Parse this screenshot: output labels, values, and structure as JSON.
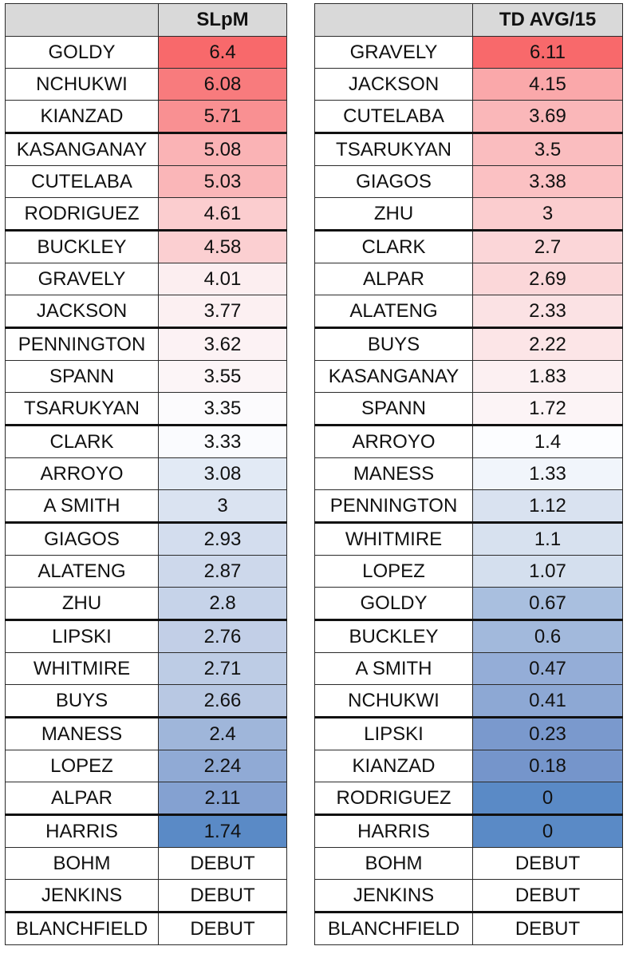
{
  "tables": [
    {
      "header_name": "",
      "header_stat": "SLpM",
      "rows": [
        {
          "name": "GOLDY",
          "value": "6.4",
          "color": "#f8696b"
        },
        {
          "name": "NCHUKWI",
          "value": "6.08",
          "color": "#f87b7d"
        },
        {
          "name": "KIANZAD",
          "value": "5.71",
          "color": "#f99092"
        },
        {
          "name": "KASANGANAY",
          "value": "5.08",
          "color": "#fab3b5"
        },
        {
          "name": "CUTELABA",
          "value": "5.03",
          "color": "#fab6b8"
        },
        {
          "name": "RODRIGUEZ",
          "value": "4.61",
          "color": "#fbcdcf"
        },
        {
          "name": "BUCKLEY",
          "value": "4.58",
          "color": "#fbcfd1"
        },
        {
          "name": "GRAVELY",
          "value": "4.01",
          "color": "#fceef0"
        },
        {
          "name": "JACKSON",
          "value": "3.77",
          "color": "#fcf0f2"
        },
        {
          "name": "PENNINGTON",
          "value": "3.62",
          "color": "#fcf2f4"
        },
        {
          "name": "SPANN",
          "value": "3.55",
          "color": "#fcf5f7"
        },
        {
          "name": "TSARUKYAN",
          "value": "3.35",
          "color": "#fcfbfd"
        },
        {
          "name": "CLARK",
          "value": "3.33",
          "color": "#fafbfe"
        },
        {
          "name": "ARROYO",
          "value": "3.08",
          "color": "#e2eaf5"
        },
        {
          "name": "A SMITH",
          "value": "3",
          "color": "#dae3f1"
        },
        {
          "name": "GIAGOS",
          "value": "2.93",
          "color": "#d3ddee"
        },
        {
          "name": "ALATENG",
          "value": "2.87",
          "color": "#cdd8eb"
        },
        {
          "name": "ZHU",
          "value": "2.8",
          "color": "#c6d3e9"
        },
        {
          "name": "LIPSKI",
          "value": "2.76",
          "color": "#c2cfe7"
        },
        {
          "name": "WHITMIRE",
          "value": "2.71",
          "color": "#bdcce5"
        },
        {
          "name": "BUYS",
          "value": "2.66",
          "color": "#b8c8e3"
        },
        {
          "name": "MANESS",
          "value": "2.4",
          "color": "#9fb6da"
        },
        {
          "name": "LOPEZ",
          "value": "2.24",
          "color": "#90aad5"
        },
        {
          "name": "ALPAR",
          "value": "2.11",
          "color": "#84a1d1"
        },
        {
          "name": "HARRIS",
          "value": "1.74",
          "color": "#5a8ac6"
        },
        {
          "name": "BOHM",
          "value": "DEBUT",
          "color": "#ffffff"
        },
        {
          "name": "JENKINS",
          "value": "DEBUT",
          "color": "#ffffff"
        },
        {
          "name": "BLANCHFIELD",
          "value": "DEBUT",
          "color": "#ffffff"
        }
      ]
    },
    {
      "header_name": "",
      "header_stat": "TD AVG/15",
      "rows": [
        {
          "name": "GRAVELY",
          "value": "6.11",
          "color": "#f8696b"
        },
        {
          "name": "JACKSON",
          "value": "4.15",
          "color": "#faa8aa"
        },
        {
          "name": "CUTELABA",
          "value": "3.69",
          "color": "#fab7b9"
        },
        {
          "name": "TSARUKYAN",
          "value": "3.5",
          "color": "#fabdbf"
        },
        {
          "name": "GIAGOS",
          "value": "3.38",
          "color": "#fbc1c3"
        },
        {
          "name": "ZHU",
          "value": "3",
          "color": "#fbcdcf"
        },
        {
          "name": "CLARK",
          "value": "2.7",
          "color": "#fbd6d8"
        },
        {
          "name": "ALPAR",
          "value": "2.69",
          "color": "#fbd7d9"
        },
        {
          "name": "ALATENG",
          "value": "2.33",
          "color": "#fbe2e4"
        },
        {
          "name": "BUYS",
          "value": "2.22",
          "color": "#fce5e7"
        },
        {
          "name": "KASANGANAY",
          "value": "1.83",
          "color": "#fcf0f2"
        },
        {
          "name": "SPANN",
          "value": "1.72",
          "color": "#fcf4f6"
        },
        {
          "name": "ARROYO",
          "value": "1.4",
          "color": "#fcfdff"
        },
        {
          "name": "MANESS",
          "value": "1.33",
          "color": "#f1f5fb"
        },
        {
          "name": "PENNINGTON",
          "value": "1.12",
          "color": "#d9e2f0"
        },
        {
          "name": "WHITMIRE",
          "value": "1.1",
          "color": "#d7e1ef"
        },
        {
          "name": "LOPEZ",
          "value": "1.07",
          "color": "#d4dfee"
        },
        {
          "name": "GOLDY",
          "value": "0.67",
          "color": "#a9bfdf"
        },
        {
          "name": "BUCKLEY",
          "value": "0.6",
          "color": "#a2b9dc"
        },
        {
          "name": "A SMITH",
          "value": "0.47",
          "color": "#94add7"
        },
        {
          "name": "NCHUKWI",
          "value": "0.41",
          "color": "#8da8d4"
        },
        {
          "name": "LIPSKI",
          "value": "0.23",
          "color": "#7a99cd"
        },
        {
          "name": "KIANZAD",
          "value": "0.18",
          "color": "#7595cb"
        },
        {
          "name": "RODRIGUEZ",
          "value": "0",
          "color": "#5a8ac6"
        },
        {
          "name": "HARRIS",
          "value": "0",
          "color": "#5a8ac6"
        },
        {
          "name": "BOHM",
          "value": "DEBUT",
          "color": "#ffffff"
        },
        {
          "name": "JENKINS",
          "value": "DEBUT",
          "color": "#ffffff"
        },
        {
          "name": "BLANCHFIELD",
          "value": "DEBUT",
          "color": "#ffffff"
        }
      ]
    }
  ]
}
